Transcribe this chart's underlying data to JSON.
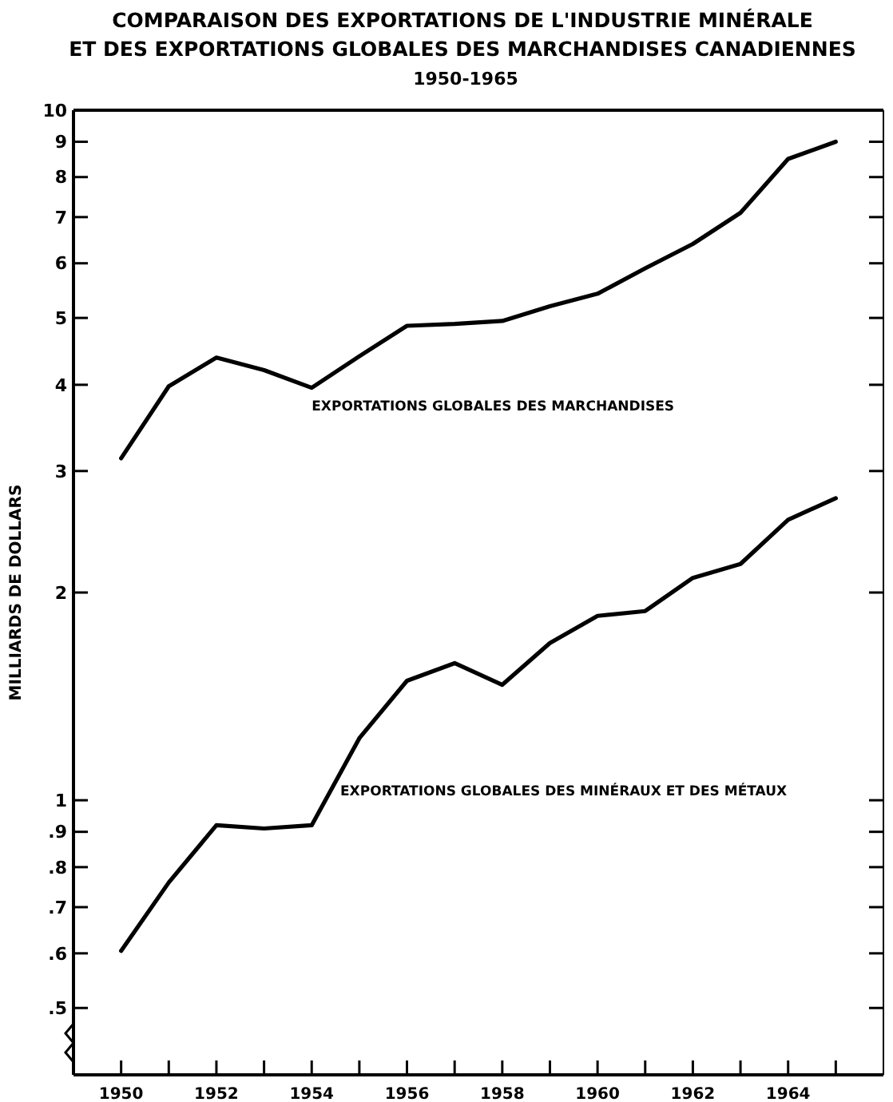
{
  "chart_data": {
    "type": "line",
    "title": "COMPARAISON DES EXPORTATIONS DE L'INDUSTRIE MINÉRALE\nET DES EXPORTATIONS GLOBALES DES MARCHANDISES CANADIENNES",
    "subtitle": "1950-1965",
    "ylabel": "MILLIARDS DE DOLLARS",
    "log": true,
    "grid": false,
    "legend": false,
    "marker": "none",
    "line_style": "solid",
    "x": [
      1950,
      1951,
      1952,
      1953,
      1954,
      1955,
      1956,
      1957,
      1958,
      1959,
      1960,
      1961,
      1962,
      1963,
      1964,
      1965
    ],
    "xlim": [
      1949,
      1966
    ],
    "xticks": [
      1950,
      {
        "value": 1951,
        "label": null
      },
      1952,
      {
        "value": 1953,
        "label": null
      },
      1954,
      {
        "value": 1955,
        "label": null
      },
      1956,
      {
        "value": 1957,
        "label": null
      },
      1958,
      {
        "value": 1959,
        "label": null
      },
      1960,
      {
        "value": 1961,
        "label": null
      },
      1962,
      {
        "value": 1963,
        "label": null
      },
      1964,
      {
        "value": 1965,
        "label": null
      }
    ],
    "ylim": [
      0.4,
      10
    ],
    "yticks": [
      {
        "value": 0.5,
        "label": ".5"
      },
      {
        "value": 0.6,
        "label": ".6"
      },
      {
        "value": 0.7,
        "label": ".7"
      },
      {
        "value": 0.8,
        "label": ".8"
      },
      {
        "value": 0.9,
        "label": ".9"
      },
      1,
      2,
      3,
      4,
      5,
      6,
      7,
      8,
      9,
      10
    ],
    "series": [
      {
        "name": "EXPORTATIONS GLOBALES DES MARCHANDISES",
        "color": "#000000",
        "values": [
          3.13,
          3.98,
          4.38,
          4.2,
          3.96,
          4.4,
          4.87,
          4.9,
          4.95,
          5.2,
          5.42,
          5.9,
          6.4,
          7.1,
          8.5,
          9.0
        ]
      },
      {
        "name": "EXPORTATIONS GLOBALES DES MINÉRAUX ET DES MÉTAUX",
        "color": "#000000",
        "values": [
          0.605,
          0.76,
          0.92,
          0.91,
          0.92,
          1.23,
          1.49,
          1.58,
          1.47,
          1.69,
          1.85,
          1.88,
          2.1,
          2.2,
          2.55,
          2.74
        ]
      }
    ]
  }
}
